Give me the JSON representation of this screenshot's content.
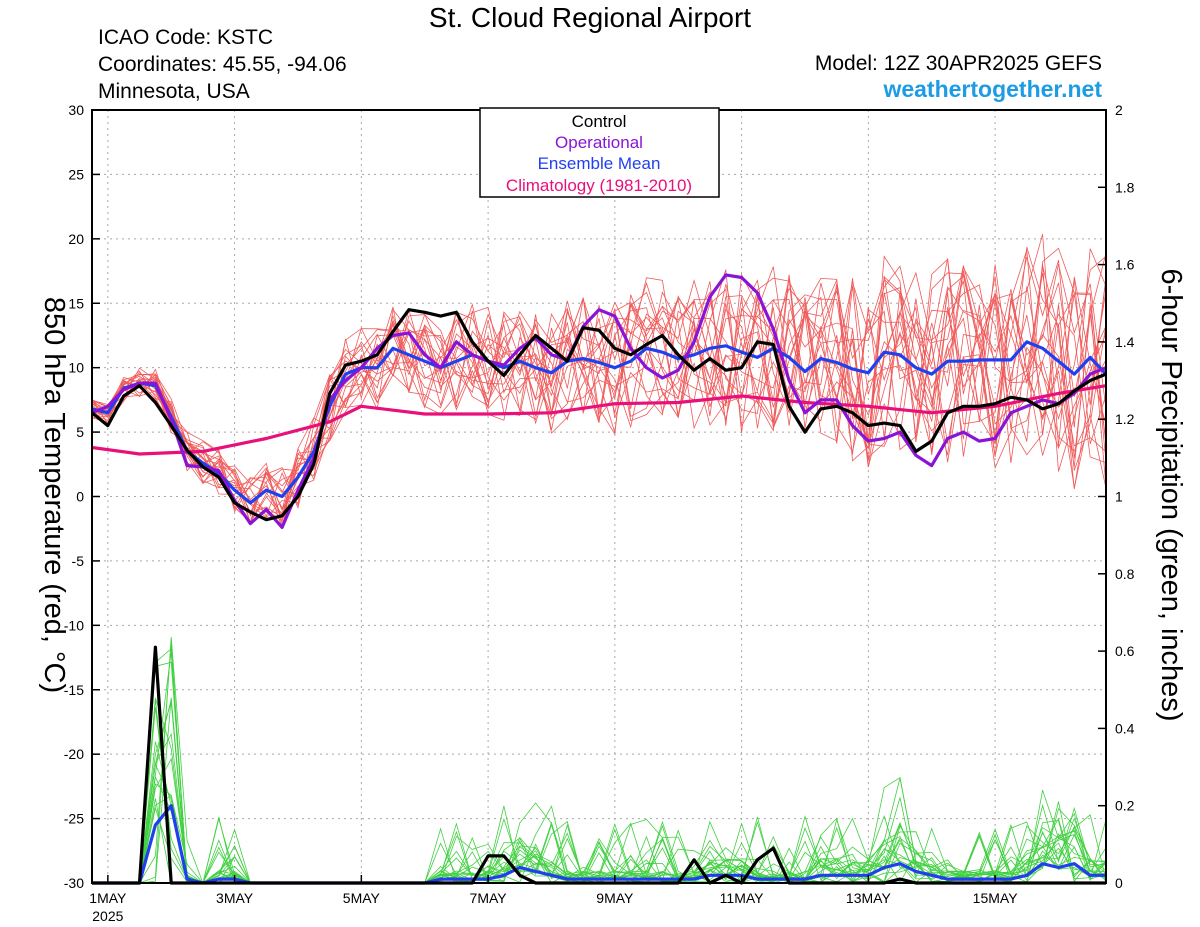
{
  "header": {
    "title": "St. Cloud Regional Airport",
    "icao": "ICAO Code: KSTC",
    "coordinates": "Coordinates: 45.55, -94.06",
    "location": "Minnesota, USA",
    "model": "Model: 12Z 30APR2025 GEFS",
    "site": "weathertogether.net"
  },
  "colors": {
    "control": "#000000",
    "operational": "#8a14d6",
    "ensemble_mean": "#2040ee",
    "climatology": "#e8107a",
    "members_temp": "#f05a5a",
    "members_precip": "#40d040",
    "site": "#1e9be6"
  },
  "chart_data": {
    "type": "line",
    "ylabel": "850 hPa Temperature (red, °C)",
    "y2label": "6-hour Precipitation (green, inches)",
    "ylim": [
      -30,
      30
    ],
    "y2lim": [
      0,
      2
    ],
    "yticks": [
      30,
      25,
      20,
      15,
      10,
      5,
      0,
      -5,
      -10,
      -15,
      -20,
      -25,
      -30
    ],
    "y2ticks": [
      2,
      1.8,
      1.6,
      1.4,
      1.2,
      1,
      0.8,
      0.6,
      0.4,
      0.2,
      0
    ],
    "grid": true,
    "legend": {
      "placement": "top-center",
      "entries": [
        "Control",
        "Operational",
        "Ensemble Mean",
        "Climatology (1981-2010)"
      ]
    },
    "x_axis": {
      "start": "2025-04-30 18Z",
      "end": "2025-05-16 18Z",
      "ticks": [
        {
          "date": "2025-05-01",
          "label": "1MAY",
          "sublabel": "2025"
        },
        {
          "date": "2025-05-03",
          "label": "3MAY",
          "sublabel": ""
        },
        {
          "date": "2025-05-05",
          "label": "5MAY",
          "sublabel": ""
        },
        {
          "date": "2025-05-07",
          "label": "7MAY",
          "sublabel": ""
        },
        {
          "date": "2025-05-09",
          "label": "9MAY",
          "sublabel": ""
        },
        {
          "date": "2025-05-11",
          "label": "11MAY",
          "sublabel": ""
        },
        {
          "date": "2025-05-13",
          "label": "13MAY",
          "sublabel": ""
        },
        {
          "date": "2025-05-15",
          "label": "15MAY",
          "sublabel": ""
        }
      ]
    },
    "series": [
      {
        "name": "Control",
        "x": [
          "2025-04-30 18Z",
          "2025-05-01 00Z",
          "2025-05-01 06Z",
          "2025-05-01 12Z",
          "2025-05-01 18Z",
          "2025-05-02 00Z",
          "2025-05-02 06Z",
          "2025-05-02 12Z",
          "2025-05-02 18Z",
          "2025-05-03 00Z",
          "2025-05-03 06Z",
          "2025-05-03 12Z",
          "2025-05-03 18Z",
          "2025-05-04 00Z",
          "2025-05-04 06Z",
          "2025-05-04 12Z",
          "2025-05-04 18Z",
          "2025-05-05 00Z",
          "2025-05-05 06Z",
          "2025-05-05 12Z",
          "2025-05-05 18Z",
          "2025-05-06 00Z",
          "2025-05-06 06Z",
          "2025-05-06 12Z",
          "2025-05-06 18Z",
          "2025-05-07 00Z",
          "2025-05-07 06Z",
          "2025-05-07 12Z",
          "2025-05-07 18Z",
          "2025-05-08 00Z",
          "2025-05-08 06Z",
          "2025-05-08 12Z",
          "2025-05-08 18Z",
          "2025-05-09 00Z",
          "2025-05-09 06Z",
          "2025-05-09 12Z",
          "2025-05-09 18Z",
          "2025-05-10 00Z",
          "2025-05-10 06Z",
          "2025-05-10 12Z",
          "2025-05-10 18Z",
          "2025-05-11 00Z",
          "2025-05-11 06Z",
          "2025-05-11 12Z",
          "2025-05-11 18Z",
          "2025-05-12 00Z",
          "2025-05-12 06Z",
          "2025-05-12 12Z",
          "2025-05-12 18Z",
          "2025-05-13 00Z",
          "2025-05-13 06Z",
          "2025-05-13 12Z",
          "2025-05-13 18Z",
          "2025-05-14 00Z",
          "2025-05-14 06Z",
          "2025-05-14 12Z",
          "2025-05-14 18Z",
          "2025-05-15 00Z",
          "2025-05-15 06Z",
          "2025-05-15 12Z",
          "2025-05-15 18Z",
          "2025-05-16 00Z",
          "2025-05-16 06Z",
          "2025-05-16 12Z",
          "2025-05-16 18Z"
        ],
        "temp": [
          6.5,
          5.5,
          7.8,
          8.6,
          7.3,
          5.5,
          3.6,
          2.3,
          1.5,
          -0.5,
          -1.2,
          -1.8,
          -1.5,
          0,
          2.5,
          8,
          10.2,
          10.5,
          11,
          12.8,
          14.5,
          14.3,
          14,
          14.3,
          12,
          10.5,
          9.4,
          11,
          12.5,
          11.5,
          10.5,
          13.1,
          12.9,
          11.5,
          11,
          11.8,
          12.5,
          11,
          9.8,
          10.7,
          9.8,
          10,
          12,
          11.8,
          7,
          5,
          6.8,
          7,
          6.5,
          5.5,
          5.7,
          5.5,
          3.5,
          4.3,
          6.5,
          7,
          7,
          7.2,
          7.7,
          7.5,
          6.8,
          7.2,
          8.2,
          9,
          9.5
        ],
        "precip": [
          0,
          0,
          0,
          0,
          0.61,
          0,
          0,
          0,
          0,
          0,
          0,
          0,
          0,
          0,
          0,
          0,
          0,
          0,
          0,
          0,
          0,
          0,
          0,
          0,
          0,
          0.07,
          0.07,
          0.02,
          0,
          0,
          0,
          0,
          0,
          0,
          0,
          0,
          0,
          0,
          0.06,
          0,
          0.02,
          0,
          0.06,
          0.09,
          0,
          0,
          0,
          0,
          0,
          0,
          0,
          0.01,
          0,
          0,
          0,
          0,
          0,
          0,
          0,
          0,
          0,
          0,
          0,
          0,
          0
        ]
      },
      {
        "name": "Operational",
        "x": [
          "2025-04-30 18Z",
          "2025-05-01 00Z",
          "2025-05-01 06Z",
          "2025-05-01 12Z",
          "2025-05-01 18Z",
          "2025-05-02 00Z",
          "2025-05-02 06Z",
          "2025-05-02 12Z",
          "2025-05-02 18Z",
          "2025-05-03 00Z",
          "2025-05-03 06Z",
          "2025-05-03 12Z",
          "2025-05-03 18Z",
          "2025-05-04 00Z",
          "2025-05-04 06Z",
          "2025-05-04 12Z",
          "2025-05-04 18Z",
          "2025-05-05 00Z",
          "2025-05-05 06Z",
          "2025-05-05 12Z",
          "2025-05-05 18Z",
          "2025-05-06 00Z",
          "2025-05-06 06Z",
          "2025-05-06 12Z",
          "2025-05-06 18Z",
          "2025-05-07 00Z",
          "2025-05-07 06Z",
          "2025-05-07 12Z",
          "2025-05-07 18Z",
          "2025-05-08 00Z",
          "2025-05-08 06Z",
          "2025-05-08 12Z",
          "2025-05-08 18Z",
          "2025-05-09 00Z",
          "2025-05-09 06Z",
          "2025-05-09 12Z",
          "2025-05-09 18Z",
          "2025-05-10 00Z",
          "2025-05-10 06Z",
          "2025-05-10 12Z",
          "2025-05-10 18Z",
          "2025-05-11 00Z",
          "2025-05-11 06Z",
          "2025-05-11 12Z",
          "2025-05-11 18Z",
          "2025-05-12 00Z",
          "2025-05-12 06Z",
          "2025-05-12 12Z",
          "2025-05-12 18Z",
          "2025-05-13 00Z",
          "2025-05-13 06Z",
          "2025-05-13 12Z",
          "2025-05-13 18Z",
          "2025-05-14 00Z",
          "2025-05-14 06Z",
          "2025-05-14 12Z",
          "2025-05-14 18Z",
          "2025-05-15 00Z",
          "2025-05-15 06Z",
          "2025-05-15 12Z",
          "2025-05-15 18Z",
          "2025-05-16 00Z",
          "2025-05-16 06Z",
          "2025-05-16 12Z",
          "2025-05-16 18Z"
        ],
        "temp": [
          6.5,
          7,
          8.3,
          8.8,
          8.8,
          6,
          2.4,
          2.3,
          2,
          -0.3,
          -2.1,
          -1,
          -2.4,
          0.5,
          3,
          7.5,
          9,
          10,
          11.5,
          12.5,
          12.7,
          11,
          10,
          12,
          11,
          10.5,
          10.2,
          11.5,
          12.3,
          11,
          10.6,
          13.2,
          14.5,
          14,
          11.5,
          10,
          9.2,
          9.8,
          12,
          15.5,
          17.2,
          17,
          15.8,
          13,
          9,
          6.5,
          7.5,
          7.5,
          5.5,
          4.3,
          4.5,
          5,
          3.2,
          2.4,
          4.5,
          5,
          4.3,
          4.5,
          6.5,
          7,
          7.5,
          7.2,
          8,
          9.5,
          10
        ],
        "precip": []
      },
      {
        "name": "Ensemble Mean",
        "x": [
          "2025-04-30 18Z",
          "2025-05-01 00Z",
          "2025-05-01 06Z",
          "2025-05-01 12Z",
          "2025-05-01 18Z",
          "2025-05-02 00Z",
          "2025-05-02 06Z",
          "2025-05-02 12Z",
          "2025-05-02 18Z",
          "2025-05-03 00Z",
          "2025-05-03 06Z",
          "2025-05-03 12Z",
          "2025-05-03 18Z",
          "2025-05-04 00Z",
          "2025-05-04 06Z",
          "2025-05-04 12Z",
          "2025-05-04 18Z",
          "2025-05-05 00Z",
          "2025-05-05 06Z",
          "2025-05-05 12Z",
          "2025-05-05 18Z",
          "2025-05-06 00Z",
          "2025-05-06 06Z",
          "2025-05-06 12Z",
          "2025-05-06 18Z",
          "2025-05-07 00Z",
          "2025-05-07 06Z",
          "2025-05-07 12Z",
          "2025-05-07 18Z",
          "2025-05-08 00Z",
          "2025-05-08 06Z",
          "2025-05-08 12Z",
          "2025-05-08 18Z",
          "2025-05-09 00Z",
          "2025-05-09 06Z",
          "2025-05-09 12Z",
          "2025-05-09 18Z",
          "2025-05-10 00Z",
          "2025-05-10 06Z",
          "2025-05-10 12Z",
          "2025-05-10 18Z",
          "2025-05-11 00Z",
          "2025-05-11 06Z",
          "2025-05-11 12Z",
          "2025-05-11 18Z",
          "2025-05-12 00Z",
          "2025-05-12 06Z",
          "2025-05-12 12Z",
          "2025-05-12 18Z",
          "2025-05-13 00Z",
          "2025-05-13 06Z",
          "2025-05-13 12Z",
          "2025-05-13 18Z",
          "2025-05-14 00Z",
          "2025-05-14 06Z",
          "2025-05-14 12Z",
          "2025-05-14 18Z",
          "2025-05-15 00Z",
          "2025-05-15 06Z",
          "2025-05-15 12Z",
          "2025-05-15 18Z",
          "2025-05-16 00Z",
          "2025-05-16 06Z",
          "2025-05-16 12Z",
          "2025-05-16 18Z"
        ],
        "temp": [
          6.8,
          6.5,
          8.4,
          8.8,
          8.6,
          6.2,
          3.5,
          2.6,
          1.8,
          0.5,
          -0.5,
          0.5,
          0,
          1.5,
          3.5,
          7,
          9.5,
          10,
          10,
          11.5,
          11,
          10.5,
          10,
          10.5,
          11,
          10.5,
          10,
          10.5,
          10,
          9.6,
          10.5,
          10.7,
          10.4,
          10,
          10.5,
          11.5,
          11.2,
          10.7,
          11,
          11.5,
          11.7,
          11.2,
          10.8,
          11.5,
          10.8,
          9.7,
          10.7,
          10.4,
          9.9,
          9.6,
          11.2,
          11,
          10,
          9.5,
          10.5,
          10.5,
          10.6,
          10.6,
          10.6,
          12,
          11.5,
          10.5,
          9.5,
          10.8,
          9.5
        ],
        "precip": [
          0,
          0,
          0,
          0,
          0.15,
          0.2,
          0.01,
          0,
          0.01,
          0.01,
          0,
          0,
          0,
          0,
          0,
          0,
          0,
          0,
          0,
          0,
          0,
          0,
          0.01,
          0.01,
          0.01,
          0.01,
          0.02,
          0.04,
          0.03,
          0.02,
          0.01,
          0.01,
          0.01,
          0.01,
          0.01,
          0.01,
          0.01,
          0.01,
          0.01,
          0.02,
          0.02,
          0.02,
          0.01,
          0.01,
          0.01,
          0.01,
          0.02,
          0.02,
          0.02,
          0.02,
          0.04,
          0.05,
          0.03,
          0.02,
          0.01,
          0.01,
          0.01,
          0.01,
          0.01,
          0.02,
          0.05,
          0.04,
          0.05,
          0.02,
          0.02
        ]
      },
      {
        "name": "Climatology (1981-2010)",
        "x": [
          "2025-04-30 18Z",
          "2025-05-01 12Z",
          "2025-05-02 12Z",
          "2025-05-03 12Z",
          "2025-05-04 12Z",
          "2025-05-05 00Z",
          "2025-05-06 00Z",
          "2025-05-07 00Z",
          "2025-05-08 00Z",
          "2025-05-09 00Z",
          "2025-05-10 00Z",
          "2025-05-11 00Z",
          "2025-05-12 00Z",
          "2025-05-13 00Z",
          "2025-05-14 00Z",
          "2025-05-15 00Z",
          "2025-05-16 00Z",
          "2025-05-16 18Z"
        ],
        "temp": [
          3.8,
          3.3,
          3.5,
          4.5,
          5.8,
          7,
          6.4,
          6.4,
          6.5,
          7.2,
          7.3,
          7.8,
          7.3,
          7,
          6.5,
          7,
          8,
          8.6
        ],
        "precip": []
      }
    ]
  }
}
